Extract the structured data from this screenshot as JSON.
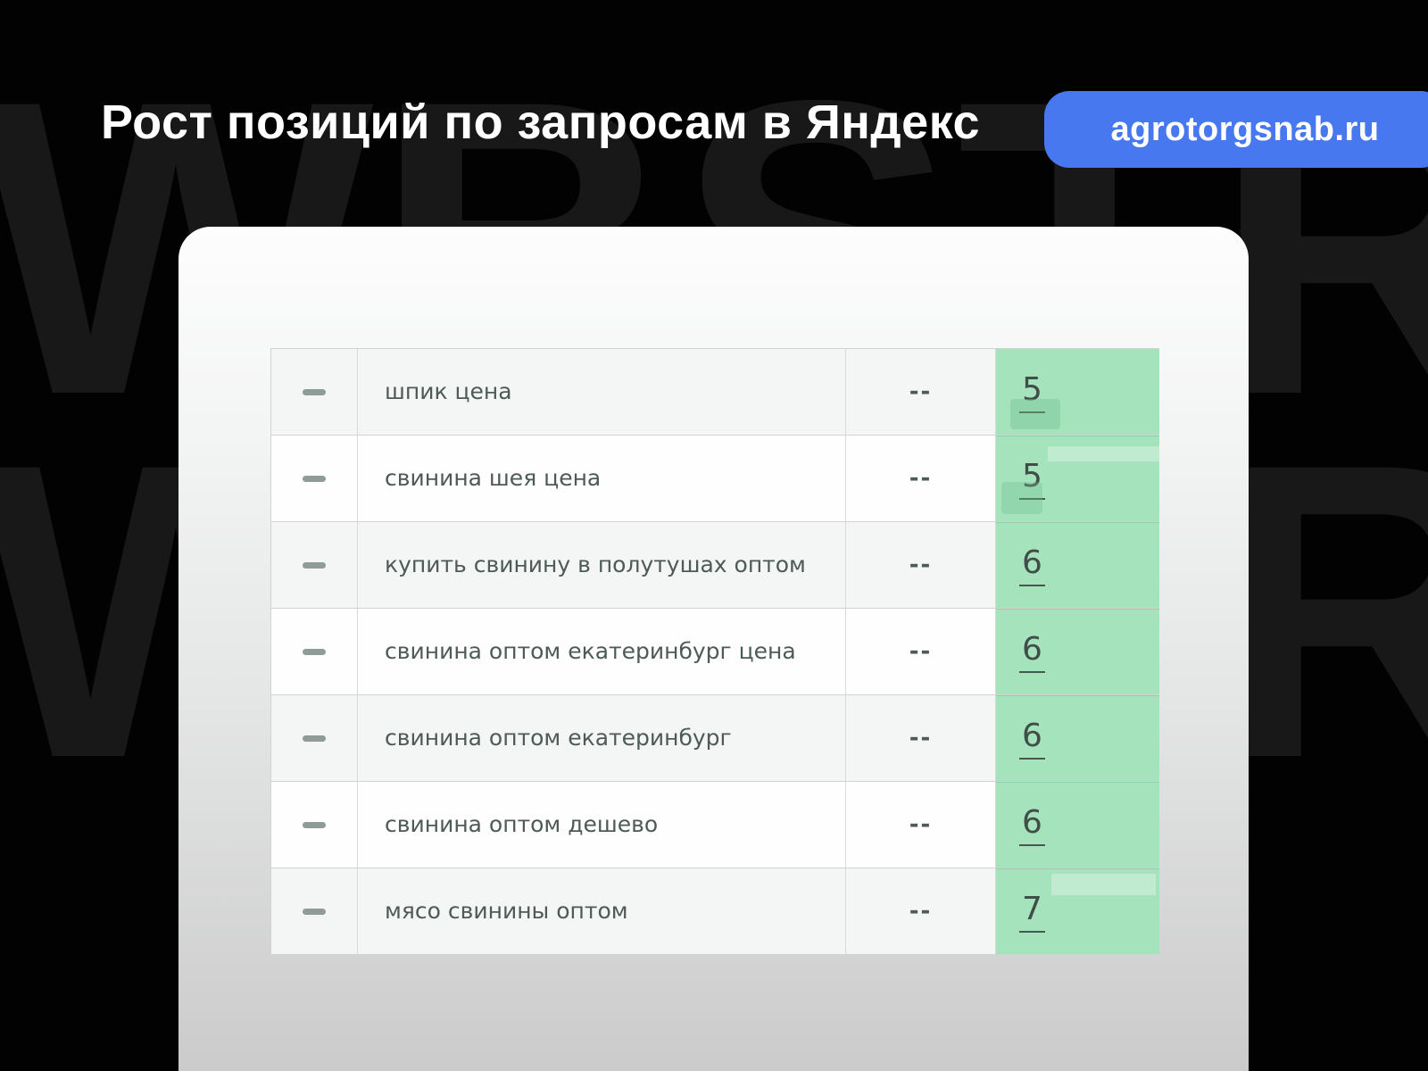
{
  "page": {
    "background_color": "#020202",
    "watermark": {
      "text": "WBSTR",
      "color": "#181818"
    }
  },
  "header": {
    "title": "Рост позиций по запросам в Яндекс",
    "site_badge": "agrotorgsnab.ru",
    "badge_color": "#4878ef"
  },
  "table": {
    "row_alt_color": "#f4f5f5",
    "position_cell_color": "#a5e3bc",
    "query_text_color": "#4d5a56",
    "rows": [
      {
        "checkbox_icon": "dash-icon",
        "query": "шпик цена",
        "previous_position": "--",
        "current_position": "5"
      },
      {
        "checkbox_icon": "dash-icon",
        "query": "свинина шея цена",
        "previous_position": "--",
        "current_position": "5"
      },
      {
        "checkbox_icon": "dash-icon",
        "query": "купить свинину в полутушах оптом",
        "previous_position": "--",
        "current_position": "6"
      },
      {
        "checkbox_icon": "dash-icon",
        "query": "свинина оптом екатеринбург цена",
        "previous_position": "--",
        "current_position": "6"
      },
      {
        "checkbox_icon": "dash-icon",
        "query": "свинина оптом екатеринбург",
        "previous_position": "--",
        "current_position": "6"
      },
      {
        "checkbox_icon": "dash-icon",
        "query": "свинина оптом дешево",
        "previous_position": "--",
        "current_position": "6"
      },
      {
        "checkbox_icon": "dash-icon",
        "query": "мясо свинины оптом",
        "previous_position": "--",
        "current_position": "7"
      }
    ]
  }
}
